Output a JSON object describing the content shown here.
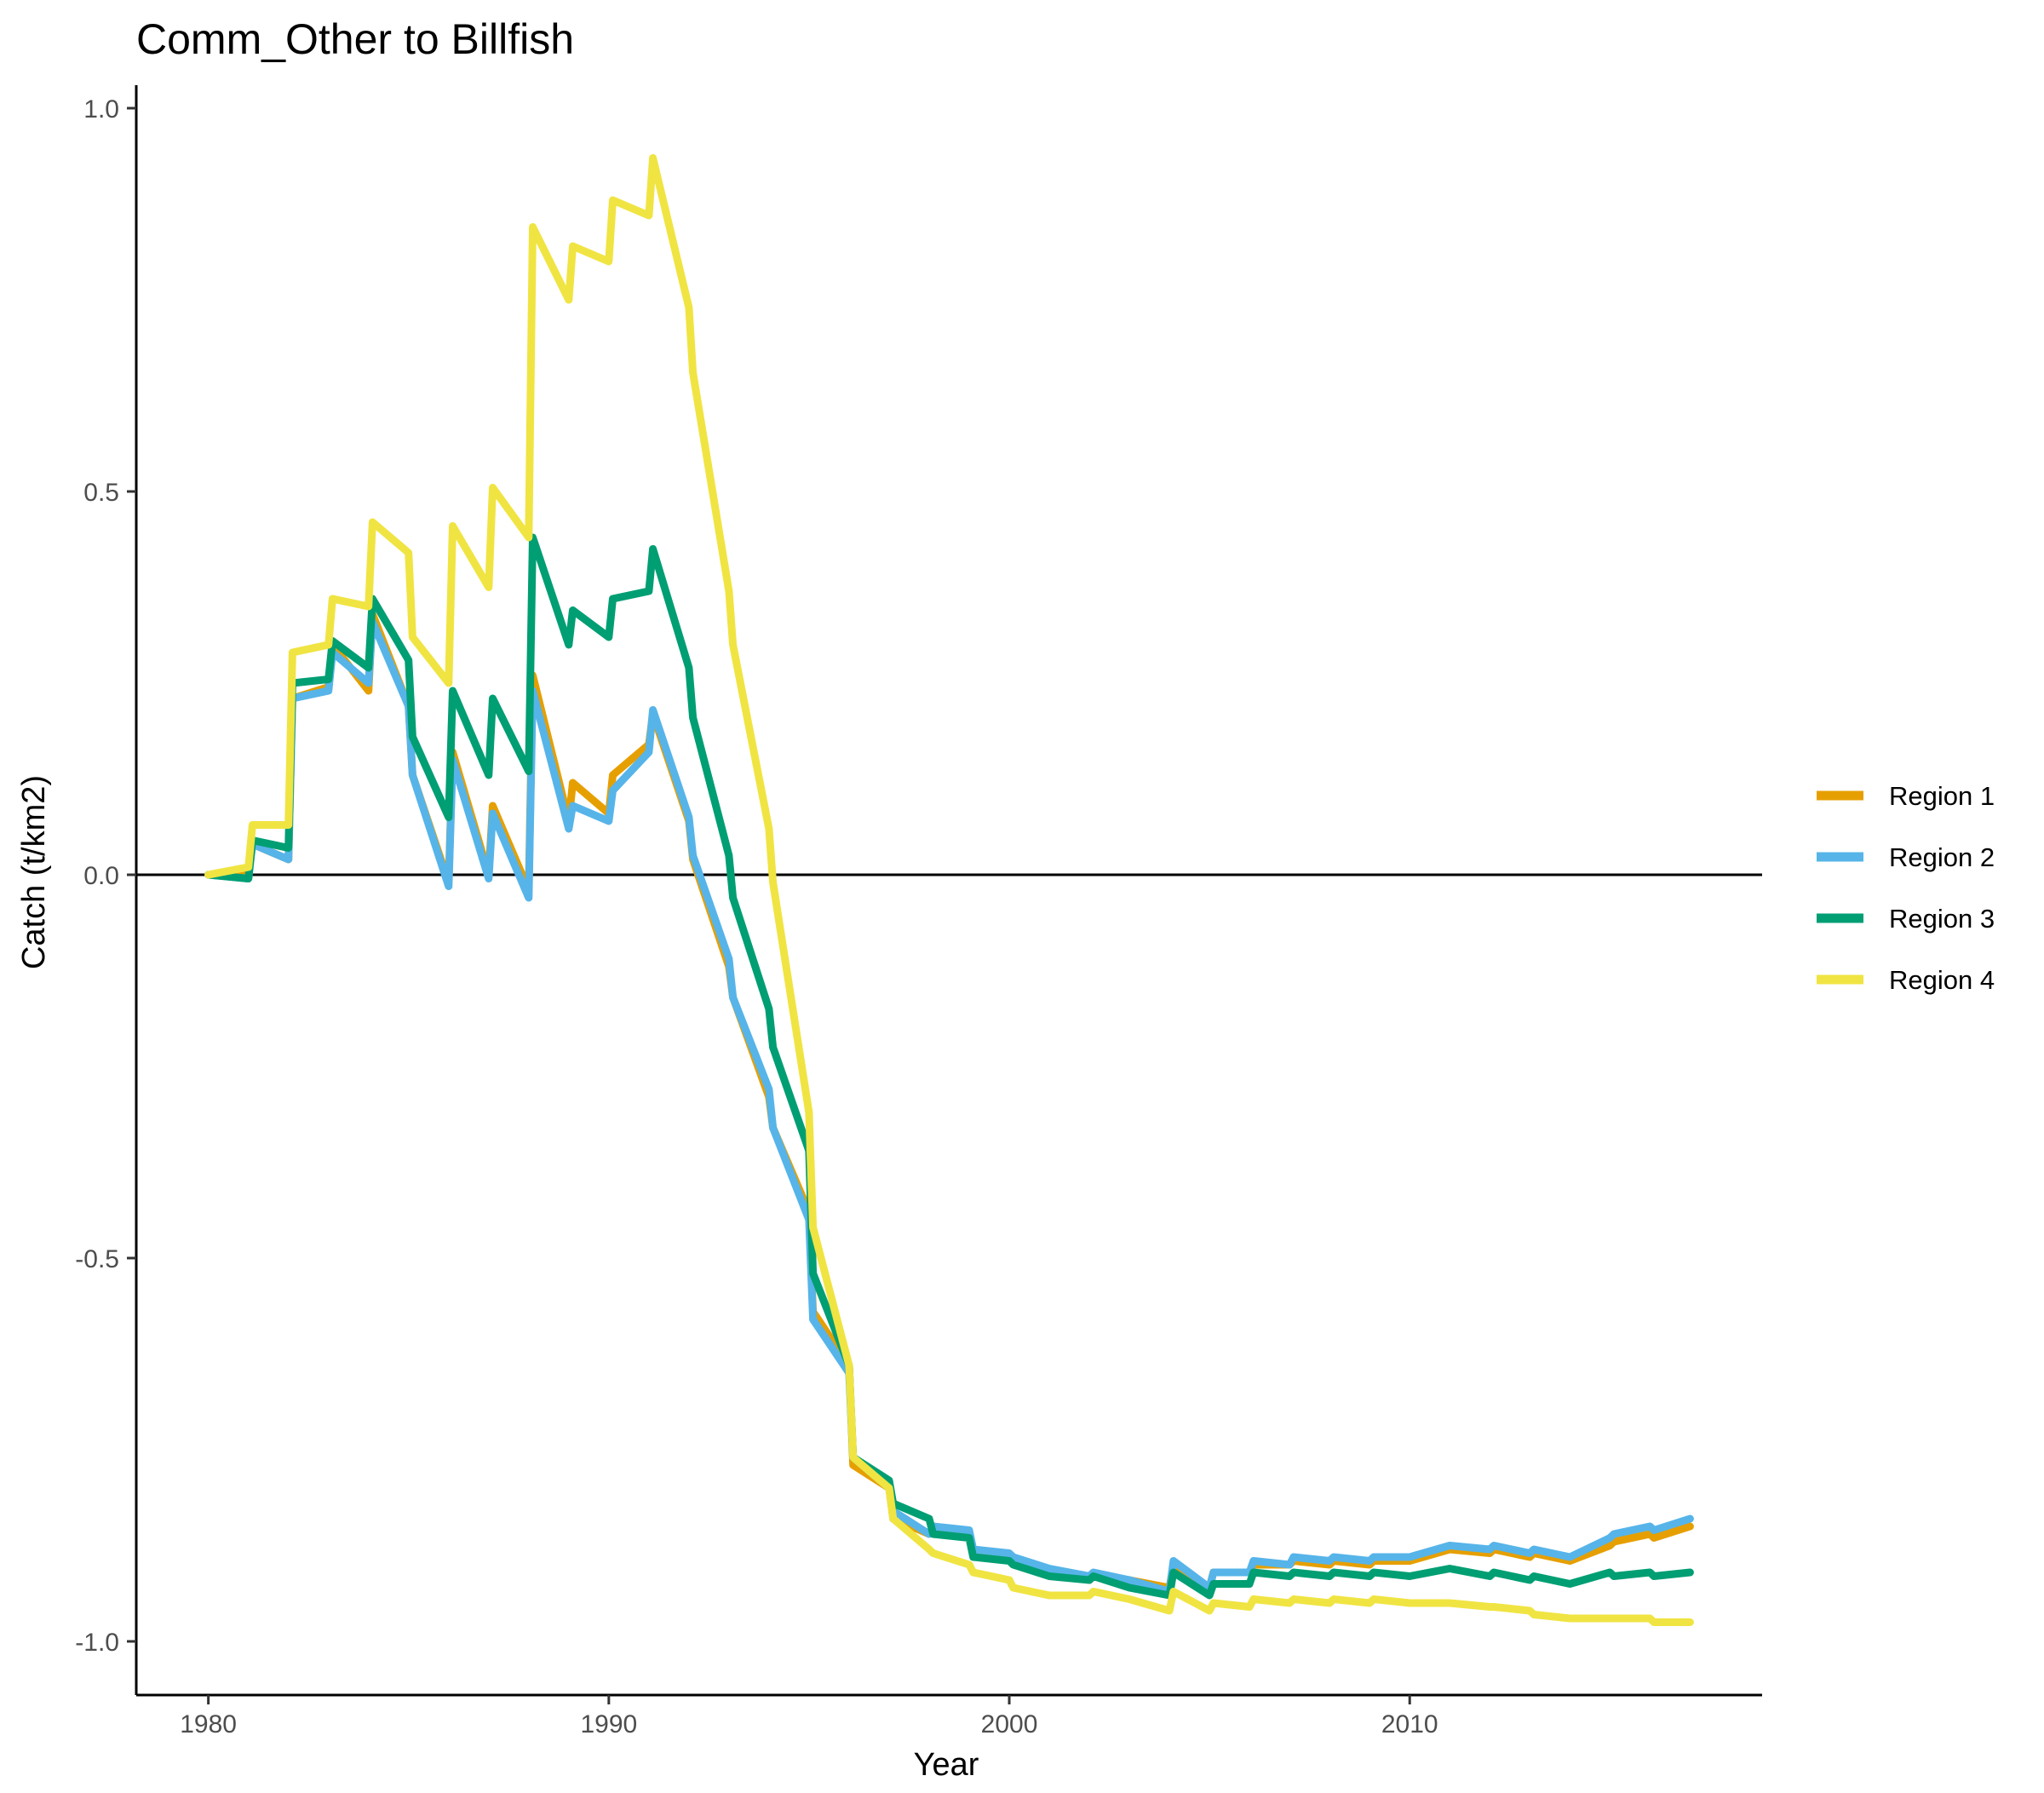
{
  "chart_data": {
    "type": "line",
    "title": "Comm_Other to Billfish",
    "xlabel": "Year",
    "ylabel": "Catch (t/km2)",
    "xlim": [
      1978.2,
      2018.8
    ],
    "ylim": [
      -1.07,
      1.03
    ],
    "xticks": [
      1980,
      1990,
      2000,
      2010
    ],
    "xtick_labels": [
      "1980",
      "1990",
      "2000",
      "2010"
    ],
    "yticks": [
      -1.0,
      -0.5,
      0.0,
      0.5,
      1.0
    ],
    "ytick_labels": [
      "-1.0",
      "-0.5",
      "0.0",
      "0.5",
      "1.0"
    ],
    "hline": 0,
    "grid": false,
    "legend_position": "right",
    "series": [
      {
        "name": "Region 1",
        "color": "#E69F00",
        "points": [
          [
            1980,
            0
          ],
          [
            1981,
            0
          ],
          [
            1981.1,
            0.04
          ],
          [
            1982,
            0.02
          ],
          [
            1982.1,
            0.23
          ],
          [
            1983,
            0.245
          ],
          [
            1983.1,
            0.3
          ],
          [
            1984,
            0.24
          ],
          [
            1984.1,
            0.34
          ],
          [
            1985,
            0.22
          ],
          [
            1985.1,
            0.13
          ],
          [
            1986,
            -0.01
          ],
          [
            1986.1,
            0.16
          ],
          [
            1987,
            0
          ],
          [
            1987.1,
            0.09
          ],
          [
            1988,
            -0.02
          ],
          [
            1988.1,
            0.26
          ],
          [
            1989,
            0.07
          ],
          [
            1989.1,
            0.12
          ],
          [
            1990,
            0.08
          ],
          [
            1990.1,
            0.13
          ],
          [
            1991,
            0.17
          ],
          [
            1991.1,
            0.21
          ],
          [
            1992,
            0.07
          ],
          [
            1992.1,
            0.02
          ],
          [
            1993,
            -0.12
          ],
          [
            1993.1,
            -0.16
          ],
          [
            1994,
            -0.29
          ],
          [
            1994.1,
            -0.33
          ],
          [
            1995,
            -0.44
          ],
          [
            1995.1,
            -0.57
          ],
          [
            1996,
            -0.64
          ],
          [
            1996.1,
            -0.77
          ],
          [
            1997,
            -0.8
          ],
          [
            1997.1,
            -0.84
          ],
          [
            1998,
            -0.86
          ],
          [
            1998.1,
            -0.85
          ],
          [
            1999,
            -0.86
          ],
          [
            1999.1,
            -0.88
          ],
          [
            2000,
            -0.89
          ],
          [
            2000.1,
            -0.89
          ],
          [
            2001,
            -0.91
          ],
          [
            2002,
            -0.92
          ],
          [
            2002.1,
            -0.915
          ],
          [
            2003,
            -0.92
          ],
          [
            2004,
            -0.93
          ],
          [
            2004.1,
            -0.9
          ],
          [
            2005,
            -0.93
          ],
          [
            2005.1,
            -0.91
          ],
          [
            2006,
            -0.91
          ],
          [
            2006.1,
            -0.9
          ],
          [
            2007,
            -0.9
          ],
          [
            2007.1,
            -0.895
          ],
          [
            2008,
            -0.9
          ],
          [
            2008.1,
            -0.895
          ],
          [
            2009,
            -0.9
          ],
          [
            2009.1,
            -0.895
          ],
          [
            2010,
            -0.895
          ],
          [
            2011,
            -0.88
          ],
          [
            2012,
            -0.885
          ],
          [
            2012.1,
            -0.88
          ],
          [
            2013,
            -0.89
          ],
          [
            2013.1,
            -0.885
          ],
          [
            2014,
            -0.895
          ],
          [
            2015,
            -0.875
          ],
          [
            2015.1,
            -0.87
          ],
          [
            2016,
            -0.86
          ],
          [
            2016.1,
            -0.865
          ],
          [
            2017,
            -0.85
          ]
        ]
      },
      {
        "name": "Region 2",
        "color": "#56B4E9",
        "points": [
          [
            1980,
            0
          ],
          [
            1981,
            -0.005
          ],
          [
            1981.1,
            0.04
          ],
          [
            1982,
            0.02
          ],
          [
            1982.1,
            0.23
          ],
          [
            1983,
            0.24
          ],
          [
            1983.1,
            0.29
          ],
          [
            1984,
            0.25
          ],
          [
            1984.1,
            0.33
          ],
          [
            1985,
            0.22
          ],
          [
            1985.1,
            0.13
          ],
          [
            1986,
            -0.015
          ],
          [
            1986.1,
            0.15
          ],
          [
            1987,
            -0.005
          ],
          [
            1987.1,
            0.08
          ],
          [
            1988,
            -0.03
          ],
          [
            1988.1,
            0.24
          ],
          [
            1989,
            0.06
          ],
          [
            1989.1,
            0.09
          ],
          [
            1990,
            0.07
          ],
          [
            1990.1,
            0.11
          ],
          [
            1991,
            0.16
          ],
          [
            1991.1,
            0.215
          ],
          [
            1992,
            0.075
          ],
          [
            1992.1,
            0.025
          ],
          [
            1993,
            -0.11
          ],
          [
            1993.1,
            -0.16
          ],
          [
            1994,
            -0.28
          ],
          [
            1994.1,
            -0.33
          ],
          [
            1995,
            -0.45
          ],
          [
            1995.1,
            -0.58
          ],
          [
            1996,
            -0.65
          ],
          [
            1996.1,
            -0.76
          ],
          [
            1997,
            -0.8
          ],
          [
            1997.1,
            -0.83
          ],
          [
            1998,
            -0.86
          ],
          [
            1998.1,
            -0.85
          ],
          [
            1999,
            -0.855
          ],
          [
            1999.1,
            -0.88
          ],
          [
            2000,
            -0.885
          ],
          [
            2000.1,
            -0.89
          ],
          [
            2001,
            -0.905
          ],
          [
            2002,
            -0.915
          ],
          [
            2002.1,
            -0.91
          ],
          [
            2003,
            -0.92
          ],
          [
            2004,
            -0.935
          ],
          [
            2004.1,
            -0.895
          ],
          [
            2005,
            -0.93
          ],
          [
            2005.1,
            -0.91
          ],
          [
            2006,
            -0.91
          ],
          [
            2006.1,
            -0.895
          ],
          [
            2007,
            -0.9
          ],
          [
            2007.1,
            -0.89
          ],
          [
            2008,
            -0.895
          ],
          [
            2008.1,
            -0.89
          ],
          [
            2009,
            -0.895
          ],
          [
            2009.1,
            -0.89
          ],
          [
            2010,
            -0.89
          ],
          [
            2011,
            -0.875
          ],
          [
            2012,
            -0.88
          ],
          [
            2012.1,
            -0.875
          ],
          [
            2013,
            -0.885
          ],
          [
            2013.1,
            -0.88
          ],
          [
            2014,
            -0.89
          ],
          [
            2015,
            -0.865
          ],
          [
            2015.1,
            -0.86
          ],
          [
            2016,
            -0.85
          ],
          [
            2016.1,
            -0.855
          ],
          [
            2017,
            -0.84
          ]
        ]
      },
      {
        "name": "Region 3",
        "color": "#009E73",
        "points": [
          [
            1980,
            0
          ],
          [
            1981,
            -0.005
          ],
          [
            1981.1,
            0.045
          ],
          [
            1982,
            0.035
          ],
          [
            1982.1,
            0.25
          ],
          [
            1983,
            0.255
          ],
          [
            1983.1,
            0.305
          ],
          [
            1984,
            0.27
          ],
          [
            1984.1,
            0.36
          ],
          [
            1985,
            0.28
          ],
          [
            1985.1,
            0.18
          ],
          [
            1986,
            0.075
          ],
          [
            1986.1,
            0.24
          ],
          [
            1987,
            0.13
          ],
          [
            1987.1,
            0.23
          ],
          [
            1988,
            0.135
          ],
          [
            1988.1,
            0.44
          ],
          [
            1989,
            0.3
          ],
          [
            1989.1,
            0.345
          ],
          [
            1990,
            0.31
          ],
          [
            1990.1,
            0.36
          ],
          [
            1991,
            0.37
          ],
          [
            1991.1,
            0.425
          ],
          [
            1992,
            0.27
          ],
          [
            1992.1,
            0.205
          ],
          [
            1993,
            0.025
          ],
          [
            1993.1,
            -0.03
          ],
          [
            1994,
            -0.175
          ],
          [
            1994.1,
            -0.225
          ],
          [
            1995,
            -0.36
          ],
          [
            1995.1,
            -0.52
          ],
          [
            1996,
            -0.64
          ],
          [
            1996.1,
            -0.76
          ],
          [
            1997,
            -0.79
          ],
          [
            1997.1,
            -0.82
          ],
          [
            1998,
            -0.84
          ],
          [
            1998.1,
            -0.86
          ],
          [
            1999,
            -0.865
          ],
          [
            1999.1,
            -0.89
          ],
          [
            2000,
            -0.895
          ],
          [
            2000.1,
            -0.9
          ],
          [
            2001,
            -0.915
          ],
          [
            2002,
            -0.92
          ],
          [
            2002.1,
            -0.915
          ],
          [
            2003,
            -0.93
          ],
          [
            2004,
            -0.94
          ],
          [
            2004.1,
            -0.91
          ],
          [
            2005,
            -0.94
          ],
          [
            2005.1,
            -0.925
          ],
          [
            2006,
            -0.925
          ],
          [
            2006.1,
            -0.91
          ],
          [
            2007,
            -0.915
          ],
          [
            2007.1,
            -0.91
          ],
          [
            2008,
            -0.915
          ],
          [
            2008.1,
            -0.91
          ],
          [
            2009,
            -0.915
          ],
          [
            2009.1,
            -0.91
          ],
          [
            2010,
            -0.915
          ],
          [
            2011,
            -0.905
          ],
          [
            2012,
            -0.915
          ],
          [
            2012.1,
            -0.91
          ],
          [
            2013,
            -0.92
          ],
          [
            2013.1,
            -0.915
          ],
          [
            2014,
            -0.925
          ],
          [
            2015,
            -0.91
          ],
          [
            2015.1,
            -0.915
          ],
          [
            2016,
            -0.91
          ],
          [
            2016.1,
            -0.915
          ],
          [
            2017,
            -0.91
          ]
        ]
      },
      {
        "name": "Region 4",
        "color": "#F0E442",
        "points": [
          [
            1980,
            0
          ],
          [
            1981,
            0.01
          ],
          [
            1981.1,
            0.065
          ],
          [
            1982,
            0.065
          ],
          [
            1982.1,
            0.29
          ],
          [
            1983,
            0.3
          ],
          [
            1983.1,
            0.36
          ],
          [
            1984,
            0.35
          ],
          [
            1984.1,
            0.46
          ],
          [
            1985,
            0.42
          ],
          [
            1985.1,
            0.31
          ],
          [
            1986,
            0.25
          ],
          [
            1986.1,
            0.455
          ],
          [
            1987,
            0.375
          ],
          [
            1987.1,
            0.505
          ],
          [
            1988,
            0.44
          ],
          [
            1988.1,
            0.845
          ],
          [
            1989,
            0.75
          ],
          [
            1989.1,
            0.82
          ],
          [
            1990,
            0.8
          ],
          [
            1990.1,
            0.88
          ],
          [
            1991,
            0.86
          ],
          [
            1991.1,
            0.935
          ],
          [
            1992,
            0.74
          ],
          [
            1992.1,
            0.655
          ],
          [
            1993,
            0.37
          ],
          [
            1993.1,
            0.3
          ],
          [
            1994,
            0.06
          ],
          [
            1994.1,
            -0.01
          ],
          [
            1995,
            -0.31
          ],
          [
            1995.1,
            -0.46
          ],
          [
            1996,
            -0.64
          ],
          [
            1996.1,
            -0.76
          ],
          [
            1997,
            -0.8
          ],
          [
            1997.1,
            -0.84
          ],
          [
            1998,
            -0.88
          ],
          [
            1998.1,
            -0.885
          ],
          [
            1999,
            -0.9
          ],
          [
            1999.1,
            -0.91
          ],
          [
            2000,
            -0.92
          ],
          [
            2000.1,
            -0.93
          ],
          [
            2001,
            -0.94
          ],
          [
            2002,
            -0.94
          ],
          [
            2002.1,
            -0.935
          ],
          [
            2003,
            -0.945
          ],
          [
            2004,
            -0.96
          ],
          [
            2004.1,
            -0.935
          ],
          [
            2005,
            -0.96
          ],
          [
            2005.1,
            -0.95
          ],
          [
            2006,
            -0.955
          ],
          [
            2006.1,
            -0.945
          ],
          [
            2007,
            -0.95
          ],
          [
            2007.1,
            -0.945
          ],
          [
            2008,
            -0.95
          ],
          [
            2008.1,
            -0.945
          ],
          [
            2009,
            -0.95
          ],
          [
            2009.1,
            -0.945
          ],
          [
            2010,
            -0.95
          ],
          [
            2011,
            -0.95
          ],
          [
            2012,
            -0.955
          ],
          [
            2012.1,
            -0.955
          ],
          [
            2013,
            -0.96
          ],
          [
            2013.1,
            -0.965
          ],
          [
            2014,
            -0.97
          ],
          [
            2015,
            -0.97
          ],
          [
            2015.1,
            -0.97
          ],
          [
            2016,
            -0.97
          ],
          [
            2016.1,
            -0.975
          ],
          [
            2017,
            -0.975
          ]
        ]
      }
    ]
  }
}
